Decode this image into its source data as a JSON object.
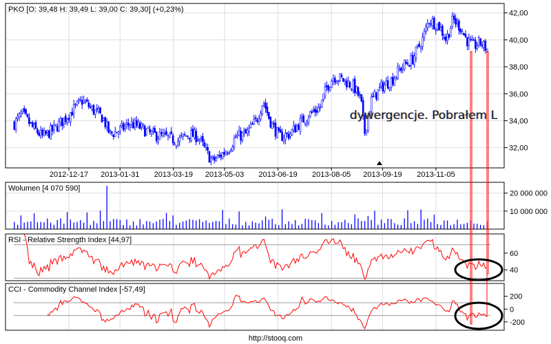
{
  "chart_data": [
    {
      "type": "candlestick",
      "title": "PKO [O: 39,48  H: 39,49  L: 39,00  C: 39,30] (+0,23%)",
      "x_ticks": [
        "2012-12-17",
        "2013-01-31",
        "2013-03-19",
        "2013-05-03",
        "2013-06-19",
        "2013-08-05",
        "2013-09-19",
        "2013-11-05"
      ],
      "y_ticks": [
        "32,00",
        "34,00",
        "36,00",
        "38,00",
        "40,00",
        "42,00"
      ],
      "ylim": [
        30.5,
        42.7
      ],
      "grid": true,
      "color": "#0000ff",
      "close_points": [
        [
          "2012-10-30",
          33.8
        ],
        [
          "2012-11-06",
          34.5
        ],
        [
          "2012-11-15",
          33.5
        ],
        [
          "2012-11-24",
          32.8
        ],
        [
          "2012-12-03",
          33.3
        ],
        [
          "2012-12-14",
          34.2
        ],
        [
          "2012-12-23",
          35.0
        ],
        [
          "2012-12-29",
          35.5
        ],
        [
          "2013-01-07",
          34.8
        ],
        [
          "2013-01-16",
          34.2
        ],
        [
          "2013-01-22",
          33.0
        ],
        [
          "2013-01-31",
          33.3
        ],
        [
          "2013-02-09",
          33.8
        ],
        [
          "2013-02-18",
          33.5
        ],
        [
          "2013-02-27",
          33.0
        ],
        [
          "2013-03-11",
          32.8
        ],
        [
          "2013-03-23",
          32.5
        ],
        [
          "2013-04-01",
          33.0
        ],
        [
          "2013-04-10",
          32.8
        ],
        [
          "2013-04-16",
          31.8
        ],
        [
          "2013-04-22",
          31.0
        ],
        [
          "2013-04-28",
          31.3
        ],
        [
          "2013-05-07",
          32.0
        ],
        [
          "2013-05-13",
          32.8
        ],
        [
          "2013-05-22",
          33.0
        ],
        [
          "2013-05-31",
          34.0
        ],
        [
          "2013-06-06",
          35.5
        ],
        [
          "2013-06-12",
          34.0
        ],
        [
          "2013-06-20",
          32.8
        ],
        [
          "2013-06-29",
          33.0
        ],
        [
          "2013-07-08",
          33.8
        ],
        [
          "2013-07-17",
          34.5
        ],
        [
          "2013-07-26",
          35.0
        ],
        [
          "2013-08-01",
          36.5
        ],
        [
          "2013-08-07",
          37.3
        ],
        [
          "2013-08-16",
          37.0
        ],
        [
          "2013-08-25",
          36.5
        ],
        [
          "2013-08-31",
          35.5
        ],
        [
          "2013-09-03",
          33.0
        ],
        [
          "2013-09-09",
          35.5
        ],
        [
          "2013-09-18",
          36.5
        ],
        [
          "2013-09-27",
          37.0
        ],
        [
          "2013-10-06",
          38.0
        ],
        [
          "2013-10-15",
          38.5
        ],
        [
          "2013-10-24",
          40.0
        ],
        [
          "2013-10-30",
          41.5
        ],
        [
          "2013-11-08",
          41.0
        ],
        [
          "2013-11-14",
          40.0
        ],
        [
          "2013-11-20",
          41.5
        ],
        [
          "2013-11-26",
          41.0
        ],
        [
          "2013-12-02",
          40.0
        ],
        [
          "2013-12-08",
          39.5
        ],
        [
          "2013-12-14",
          39.8
        ],
        [
          "2013-12-20",
          39.3
        ]
      ]
    },
    {
      "type": "bar",
      "title": "Wolumen [4 070 590]",
      "y_ticks": [
        "10 000 000",
        "20 000 000"
      ],
      "color": "#0000ff"
    },
    {
      "type": "line",
      "title": "RSI - Relative Strength Index [44,97]",
      "y_ticks": [
        "40",
        "60"
      ],
      "ylim": [
        27,
        83
      ],
      "ref_lines": [
        30,
        70
      ],
      "color": "#ff0000"
    },
    {
      "type": "line",
      "title": "CCI - Commodity Channel Index [-57,49]",
      "y_ticks": [
        "-200",
        "0",
        "200"
      ],
      "ylim": [
        -330,
        400
      ],
      "ref_lines": [
        -100,
        100
      ],
      "color": "#ff0000"
    }
  ],
  "annotation_text": "dywergencje. Pobrałem L",
  "footer": "http://stooq.com"
}
